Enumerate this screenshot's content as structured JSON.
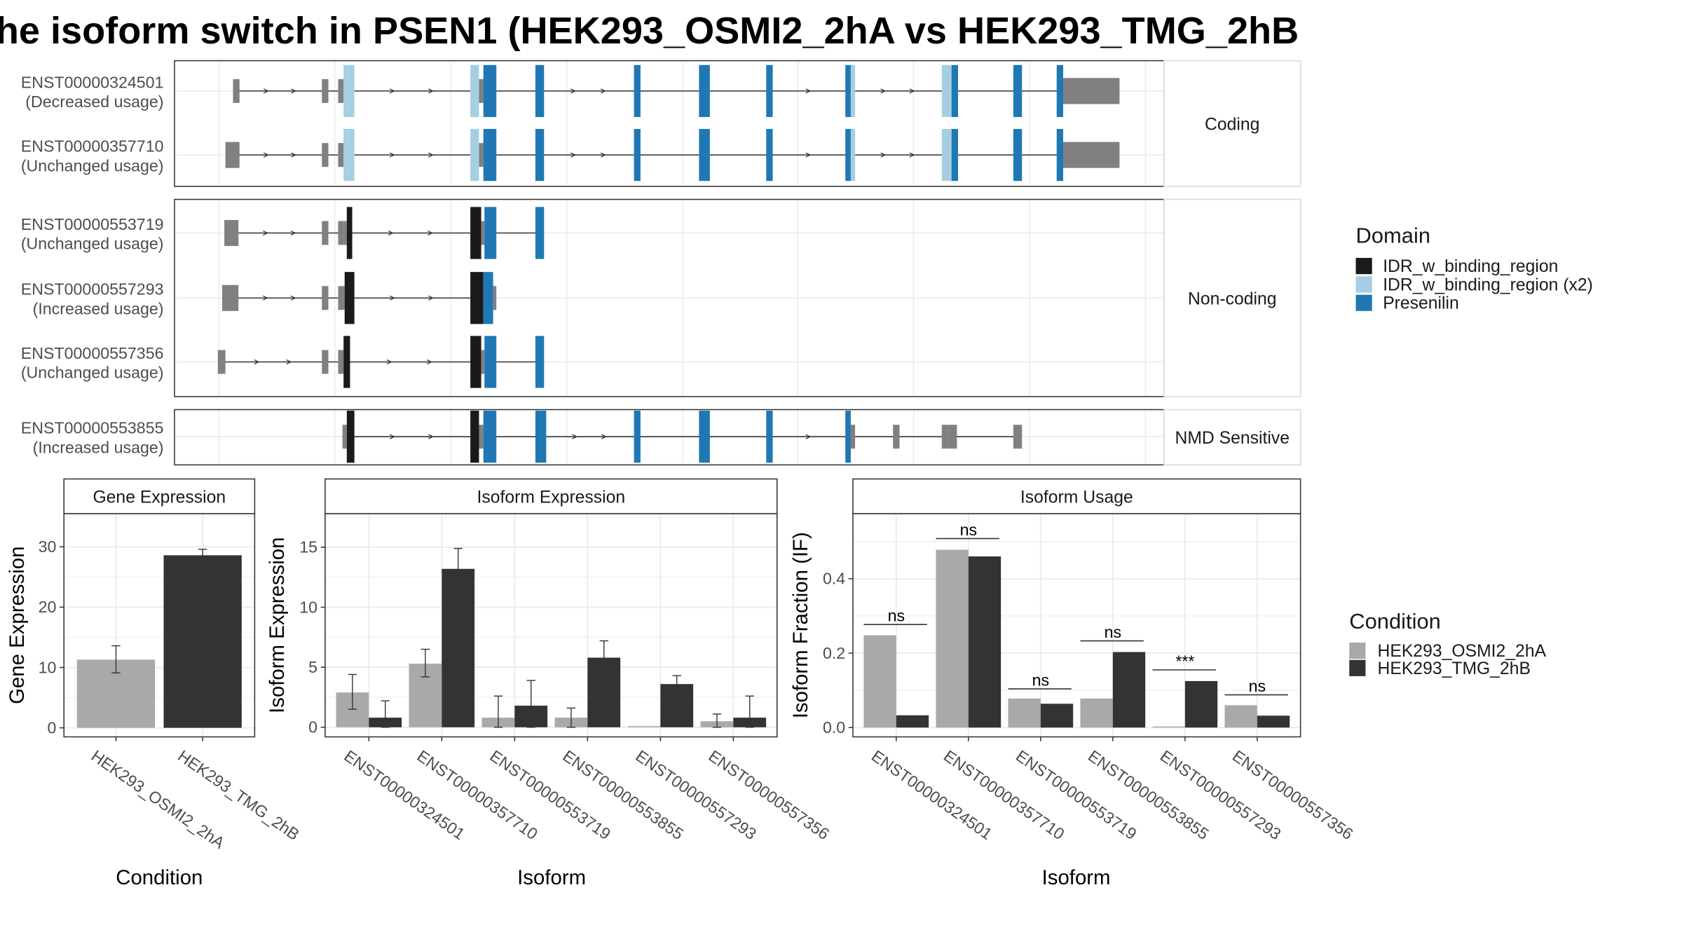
{
  "title": "he isoform switch in PSEN1 (HEK293_OSMI2_2hA vs HEK293_TMG_2hB",
  "colors": {
    "exon": "#808080",
    "IDR_w_binding_region": "#1a1a1a",
    "IDR_w_binding_region_x2": "#a6cee3",
    "Presenilin": "#1f78b4",
    "cond_a": "#a9a9a9",
    "cond_b": "#333333",
    "panel_border": "#333333",
    "grid": "#ebebeb",
    "strip_bg": "#ffffff"
  },
  "structure": {
    "groups": [
      {
        "label": "Coding",
        "transcripts": [
          {
            "id": "ENST00000324501",
            "usage": "(Decreased usage)",
            "exons": [
              [
                215,
                221,
                "exon"
              ],
              [
                297,
                303,
                "exon"
              ],
              [
                312,
                317,
                "exon"
              ],
              [
                317,
                321,
                "IDR_w_binding_region_x2"
              ],
              [
                321,
                327,
                "IDR_w_binding_region_x2"
              ],
              [
                434,
                442,
                "IDR_w_binding_region_x2"
              ],
              [
                442,
                446,
                "exon"
              ],
              [
                446,
                458,
                "Presenilin"
              ],
              [
                494,
                502,
                "Presenilin"
              ],
              [
                585,
                591,
                "Presenilin"
              ],
              [
                645,
                655,
                "Presenilin"
              ],
              [
                707,
                713,
                "Presenilin"
              ],
              [
                780,
                785,
                "Presenilin"
              ],
              [
                785,
                789,
                "IDR_w_binding_region_x2"
              ],
              [
                869,
                878,
                "IDR_w_binding_region_x2"
              ],
              [
                878,
                884,
                "Presenilin"
              ],
              [
                935,
                943,
                "Presenilin"
              ],
              [
                975,
                981,
                "Presenilin"
              ],
              [
                981,
                1033,
                "exon"
              ]
            ]
          },
          {
            "id": "ENST00000357710",
            "usage": "(Unchanged usage)",
            "exons": [
              [
                208,
                221,
                "exon"
              ],
              [
                297,
                303,
                "exon"
              ],
              [
                312,
                317,
                "exon"
              ],
              [
                317,
                321,
                "IDR_w_binding_region_x2"
              ],
              [
                321,
                327,
                "IDR_w_binding_region_x2"
              ],
              [
                434,
                442,
                "IDR_w_binding_region_x2"
              ],
              [
                442,
                446,
                "exon"
              ],
              [
                446,
                458,
                "Presenilin"
              ],
              [
                494,
                502,
                "Presenilin"
              ],
              [
                585,
                591,
                "Presenilin"
              ],
              [
                645,
                655,
                "Presenilin"
              ],
              [
                707,
                713,
                "Presenilin"
              ],
              [
                780,
                785,
                "Presenilin"
              ],
              [
                785,
                789,
                "IDR_w_binding_region_x2"
              ],
              [
                869,
                878,
                "IDR_w_binding_region_x2"
              ],
              [
                878,
                884,
                "Presenilin"
              ],
              [
                935,
                943,
                "Presenilin"
              ],
              [
                975,
                981,
                "Presenilin"
              ],
              [
                981,
                1033,
                "exon"
              ]
            ]
          }
        ]
      },
      {
        "label": "Non-coding",
        "transcripts": [
          {
            "id": "ENST00000553719",
            "usage": "(Unchanged usage)",
            "exons": [
              [
                207,
                220,
                "exon"
              ],
              [
                297,
                303,
                "exon"
              ],
              [
                312,
                317,
                "exon"
              ],
              [
                317,
                320,
                "exon"
              ],
              [
                320,
                325,
                "IDR_w_binding_region"
              ],
              [
                434,
                444,
                "IDR_w_binding_region"
              ],
              [
                444,
                447,
                "exon"
              ],
              [
                447,
                458,
                "Presenilin"
              ],
              [
                494,
                502,
                "Presenilin"
              ]
            ]
          },
          {
            "id": "ENST00000557293",
            "usage": "(Increased usage)",
            "exons": [
              [
                205,
                220,
                "exon"
              ],
              [
                297,
                303,
                "exon"
              ],
              [
                312,
                318,
                "exon"
              ],
              [
                318,
                327,
                "IDR_w_binding_region"
              ],
              [
                434,
                446,
                "IDR_w_binding_region"
              ],
              [
                446,
                455,
                "Presenilin"
              ],
              [
                455,
                458,
                "exon"
              ]
            ]
          },
          {
            "id": "ENST00000557356",
            "usage": "(Unchanged usage)",
            "exons": [
              [
                201,
                208,
                "exon"
              ],
              [
                297,
                303,
                "exon"
              ],
              [
                312,
                317,
                "exon"
              ],
              [
                317,
                323,
                "IDR_w_binding_region"
              ],
              [
                434,
                444,
                "IDR_w_binding_region"
              ],
              [
                444,
                447,
                "exon"
              ],
              [
                447,
                458,
                "Presenilin"
              ],
              [
                494,
                502,
                "Presenilin"
              ]
            ]
          }
        ]
      },
      {
        "label": "NMD Sensitive",
        "transcripts": [
          {
            "id": "ENST00000553855",
            "usage": "(Increased usage)",
            "exons": [
              [
                316,
                320,
                "exon"
              ],
              [
                320,
                327,
                "IDR_w_binding_region"
              ],
              [
                434,
                442,
                "IDR_w_binding_region"
              ],
              [
                442,
                446,
                "exon"
              ],
              [
                446,
                458,
                "Presenilin"
              ],
              [
                494,
                504,
                "Presenilin"
              ],
              [
                585,
                591,
                "Presenilin"
              ],
              [
                645,
                655,
                "Presenilin"
              ],
              [
                707,
                713,
                "Presenilin"
              ],
              [
                780,
                785,
                "Presenilin"
              ],
              [
                785,
                789,
                "exon"
              ],
              [
                824,
                830,
                "exon"
              ],
              [
                869,
                875,
                "exon"
              ],
              [
                875,
                883,
                "exon"
              ],
              [
                935,
                943,
                "exon"
              ]
            ]
          }
        ]
      }
    ],
    "legend": {
      "title": "Domain",
      "items": [
        {
          "label": "IDR_w_binding_region",
          "key": "IDR_w_binding_region"
        },
        {
          "label": "IDR_w_binding_region (x2)",
          "key": "IDR_w_binding_region_x2"
        },
        {
          "label": "Presenilin",
          "key": "Presenilin"
        }
      ]
    }
  },
  "chart_data": [
    {
      "type": "bar",
      "title": "Gene Expression",
      "xlabel": "Condition",
      "ylabel": "Gene Expression",
      "categories": [
        "HEK293_OSMI2_2hA",
        "HEK293_TMG_2hB"
      ],
      "values": [
        11.3,
        28.6
      ],
      "errors": [
        [
          9.1,
          13.6
        ],
        [
          27.8,
          29.6
        ]
      ],
      "ylim": [
        -1.5,
        35.5
      ],
      "yticks": [
        0,
        10,
        20,
        30
      ],
      "grid": true
    },
    {
      "type": "bar",
      "title": "Isoform Expression",
      "xlabel": "Isoform",
      "ylabel": "Isoform Expression",
      "categories": [
        "ENST00000324501",
        "ENST00000357710",
        "ENST00000553719",
        "ENST00000553855",
        "ENST00000557293",
        "ENST00000557356"
      ],
      "series": [
        {
          "name": "HEK293_OSMI2_2hA",
          "values": [
            2.9,
            5.3,
            0.8,
            0.8,
            0.0,
            0.5
          ],
          "errors": [
            [
              1.5,
              4.4
            ],
            [
              4.2,
              6.5
            ],
            [
              0.0,
              2.6
            ],
            [
              0.0,
              1.6
            ],
            [
              0.0,
              0.0
            ],
            [
              0.0,
              1.1
            ]
          ]
        },
        {
          "name": "HEK293_TMG_2hB",
          "values": [
            0.8,
            13.2,
            1.8,
            5.8,
            3.6,
            0.8
          ],
          "errors": [
            [
              0.0,
              2.2
            ],
            [
              11.5,
              14.9
            ],
            [
              0.0,
              3.9
            ],
            [
              4.4,
              7.2
            ],
            [
              3.0,
              4.3
            ],
            [
              0.0,
              2.6
            ]
          ]
        }
      ],
      "ylim": [
        -0.8,
        17.8
      ],
      "yticks": [
        0,
        5,
        10,
        15
      ],
      "grid": true
    },
    {
      "type": "bar",
      "title": "Isoform Usage",
      "xlabel": "Isoform",
      "ylabel": "Isoform Fraction (IF)",
      "categories": [
        "ENST00000324501",
        "ENST00000357710",
        "ENST00000553719",
        "ENST00000553855",
        "ENST00000557293",
        "ENST00000557356"
      ],
      "series": [
        {
          "name": "HEK293_OSMI2_2hA",
          "values": [
            0.248,
            0.478,
            0.078,
            0.078,
            0.0,
            0.06
          ]
        },
        {
          "name": "HEK293_TMG_2hB",
          "values": [
            0.033,
            0.46,
            0.064,
            0.203,
            0.125,
            0.032
          ]
        }
      ],
      "significance": [
        {
          "label": "ns",
          "y": 0.277
        },
        {
          "label": "ns",
          "y": 0.508
        },
        {
          "label": "ns",
          "y": 0.104
        },
        {
          "label": "ns",
          "y": 0.233
        },
        {
          "label": "***",
          "y": 0.155
        },
        {
          "label": "ns",
          "y": 0.088
        }
      ],
      "ylim": [
        -0.025,
        0.575
      ],
      "yticks": [
        0.0,
        0.2,
        0.4
      ],
      "ytick_labels": [
        "0.0",
        "0.2",
        "0.4"
      ],
      "grid": true
    }
  ],
  "condition_legend": {
    "title": "Condition",
    "items": [
      {
        "label": "HEK293_OSMI2_2hA",
        "key": "cond_a"
      },
      {
        "label": "HEK293_TMG_2hB",
        "key": "cond_b"
      }
    ]
  }
}
